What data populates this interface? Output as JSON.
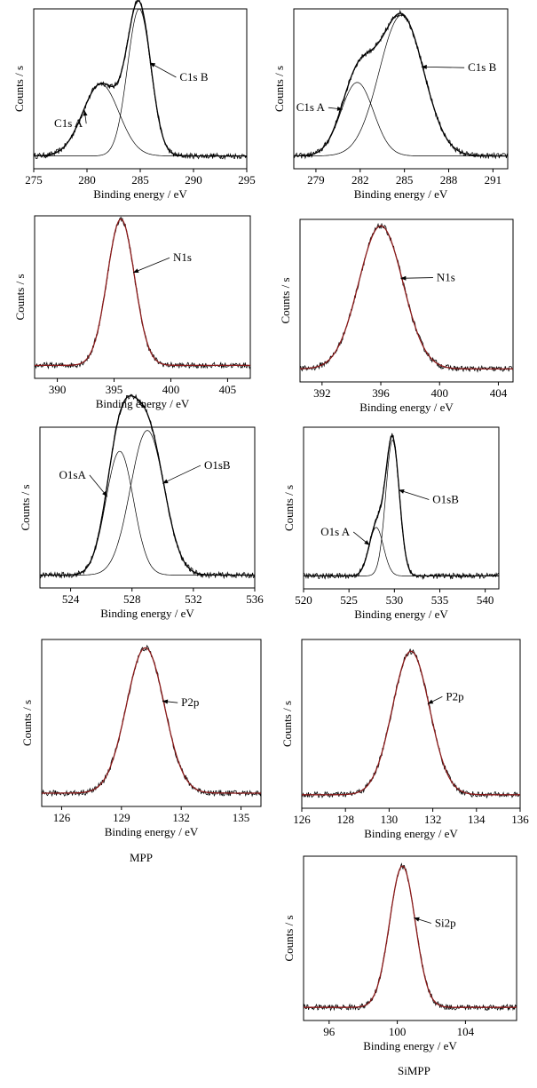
{
  "figure": {
    "captions": [
      {
        "text": "MPP"
      },
      {
        "text": "SiMPP"
      }
    ]
  },
  "chart_data": [
    {
      "type": "line",
      "xlabel": "Binding energy / eV",
      "ylabel": "Counts / s",
      "xlim": [
        275,
        295
      ],
      "ylim": [
        0,
        1
      ],
      "xticks": [
        275,
        280,
        285,
        290,
        295
      ],
      "peaks": [
        {
          "center": 281.3,
          "height": 0.45,
          "width": 1.7
        },
        {
          "center": 284.9,
          "height": 0.92,
          "width": 1.1
        }
      ],
      "fit_color": "#000000",
      "annotations": [
        {
          "label": "C1s A",
          "peak": 0,
          "tx": 279.6,
          "ty": 0.26
        },
        {
          "label": "C1s B",
          "peak": 1,
          "tx": 288.7,
          "ty": 0.55
        }
      ]
    },
    {
      "type": "line",
      "xlabel": "Binding energy / eV",
      "ylabel": "Counts / s",
      "xlim": [
        277.5,
        292
      ],
      "ylim": [
        0,
        1
      ],
      "xticks": [
        279,
        282,
        285,
        288,
        291
      ],
      "peaks": [
        {
          "center": 281.8,
          "height": 0.46,
          "width": 1.1
        },
        {
          "center": 284.8,
          "height": 0.88,
          "width": 1.5
        }
      ],
      "fit_color": "#000000",
      "annotations": [
        {
          "label": "C1s A",
          "peak": 0,
          "tx": 279.6,
          "ty": 0.36
        },
        {
          "label": "C1s B",
          "peak": 1,
          "tx": 289.3,
          "ty": 0.61
        }
      ]
    },
    {
      "type": "line",
      "xlabel": "Binding energy / eV",
      "ylabel": "Counts / s",
      "xlim": [
        388,
        407
      ],
      "ylim": [
        0,
        1
      ],
      "xticks": [
        390,
        395,
        400,
        405
      ],
      "peaks": [
        {
          "center": 395.6,
          "height": 0.9,
          "width": 1.2
        }
      ],
      "fit_color": "#8b1a1a",
      "annotations": [
        {
          "label": "N1s",
          "peak": 0,
          "tx": 400.2,
          "ty": 0.72
        }
      ]
    },
    {
      "type": "line",
      "xlabel": "Binding energy / eV",
      "ylabel": "Counts / s",
      "xlim": [
        390.5,
        405
      ],
      "ylim": [
        0,
        1
      ],
      "xticks": [
        392,
        396,
        400,
        404
      ],
      "peaks": [
        {
          "center": 396.0,
          "height": 0.88,
          "width": 1.5
        }
      ],
      "fit_color": "#8b1a1a",
      "annotations": [
        {
          "label": "N1s",
          "peak": 0,
          "tx": 399.8,
          "ty": 0.62
        }
      ]
    },
    {
      "type": "line",
      "xlabel": "Binding energy / eV",
      "ylabel": "Counts / s",
      "xlim": [
        522,
        536
      ],
      "ylim": [
        0,
        1
      ],
      "xticks": [
        524,
        528,
        532,
        536
      ],
      "peaks": [
        {
          "center": 527.2,
          "height": 0.77,
          "width": 0.9
        },
        {
          "center": 529.0,
          "height": 0.9,
          "width": 1.1
        }
      ],
      "fit_color": "#000000",
      "annotations": [
        {
          "label": "O1sA",
          "peak": 0,
          "tx": 525.0,
          "ty": 0.68
        },
        {
          "label": "O1sB",
          "peak": 1,
          "tx": 532.7,
          "ty": 0.74
        }
      ]
    },
    {
      "type": "line",
      "xlabel": "Binding energy / eV",
      "ylabel": "Counts / s",
      "xlim": [
        520,
        541.5
      ],
      "ylim": [
        0,
        1
      ],
      "xticks": [
        520,
        525,
        530,
        535,
        540
      ],
      "peaks": [
        {
          "center": 528.0,
          "height": 0.3,
          "width": 0.8
        },
        {
          "center": 529.8,
          "height": 0.84,
          "width": 0.75
        }
      ],
      "fit_color": "#000000",
      "annotations": [
        {
          "label": "O1s A",
          "peak": 0,
          "tx": 525.1,
          "ty": 0.33
        },
        {
          "label": "O1sB",
          "peak": 1,
          "tx": 534.2,
          "ty": 0.53
        }
      ]
    },
    {
      "type": "line",
      "xlabel": "Binding energy / eV",
      "ylabel": "Counts / s",
      "xlim": [
        125,
        136
      ],
      "ylim": [
        0,
        1
      ],
      "xticks": [
        126,
        129,
        132,
        135
      ],
      "peaks": [
        {
          "center": 130.2,
          "height": 0.87,
          "width": 0.95
        }
      ],
      "fit_color": "#8b1a1a",
      "annotations": [
        {
          "label": "P2p",
          "peak": 0,
          "tx": 132.0,
          "ty": 0.6
        }
      ]
    },
    {
      "type": "line",
      "xlabel": "Binding energy / eV",
      "ylabel": "Counts / s",
      "xlim": [
        126,
        136
      ],
      "ylim": [
        0,
        1
      ],
      "xticks": [
        126,
        128,
        130,
        132,
        134,
        136
      ],
      "peaks": [
        {
          "center": 131.0,
          "height": 0.85,
          "width": 0.85
        }
      ],
      "fit_color": "#8b1a1a",
      "annotations": [
        {
          "label": "P2p",
          "peak": 0,
          "tx": 132.6,
          "ty": 0.64
        }
      ]
    },
    {
      "type": "line",
      "xlabel": "Binding energy / eV",
      "ylabel": "Counts / s",
      "xlim": [
        94.5,
        107
      ],
      "ylim": [
        0,
        1
      ],
      "xticks": [
        96,
        100,
        104
      ],
      "peaks": [
        {
          "center": 100.3,
          "height": 0.86,
          "width": 0.75
        }
      ],
      "fit_color": "#8b1a1a",
      "annotations": [
        {
          "label": "Si2p",
          "peak": 0,
          "tx": 102.2,
          "ty": 0.57
        }
      ]
    }
  ]
}
